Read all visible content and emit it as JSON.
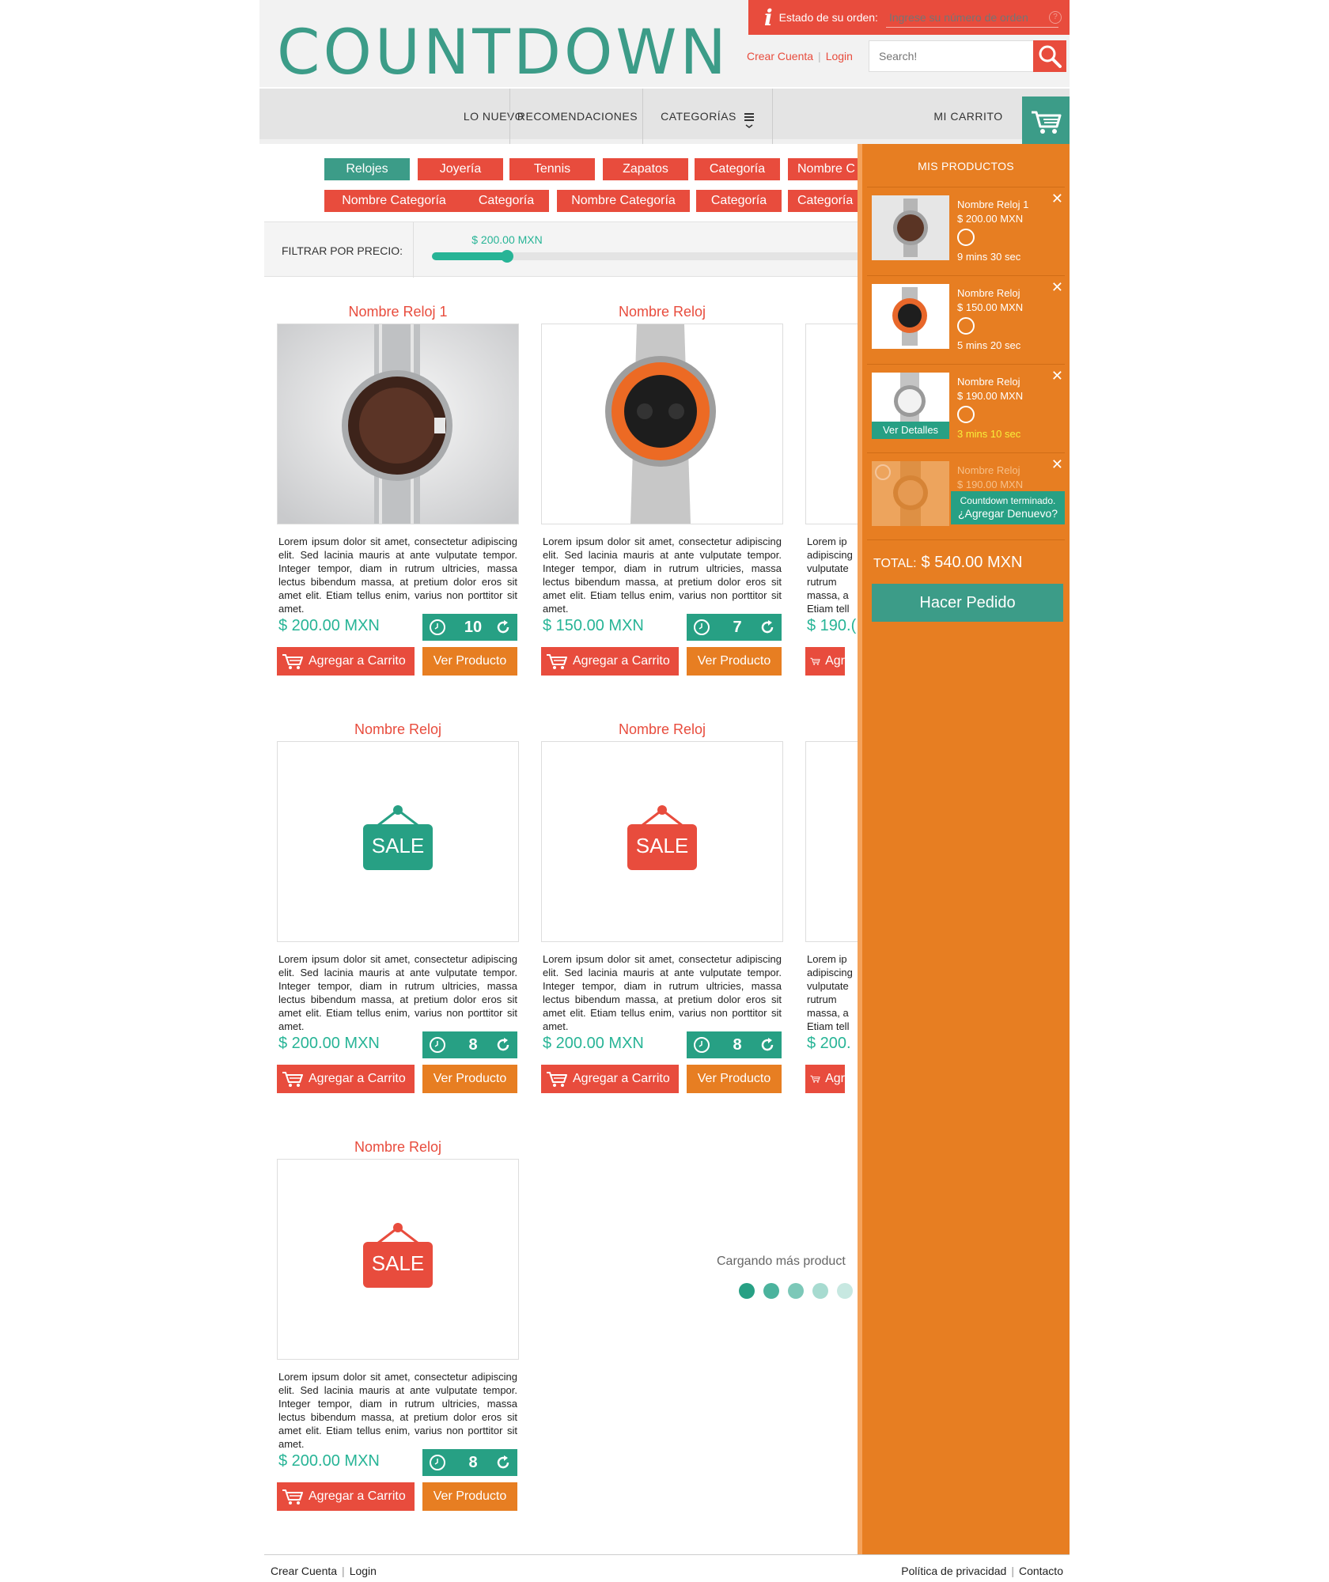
{
  "header": {
    "logo": "COUNTDOWN",
    "order_status_label": "Estado de su orden:",
    "order_input_placeholder": "Ingrese su número de orden",
    "create_account": "Crear Cuenta",
    "login": "Login",
    "search_placeholder": "Search!"
  },
  "nav": {
    "new": "LO NUEVO",
    "recommendations": "RECOMENDACIONES",
    "categories": "CATEGORÍAS",
    "cart": "MI CARRITO"
  },
  "categories": {
    "row1": [
      "Relojes",
      "Joyería",
      "Tennis",
      "Zapatos",
      "Categoría",
      "Nombre C"
    ],
    "row2": [
      "Nombre Categoría",
      "Categoría",
      "Nombre Categoría",
      "Categoría",
      "Categoría"
    ]
  },
  "filter": {
    "label": "FILTRAR POR PRECIO:",
    "value_label": "$ 200.00 MXN",
    "value_fraction": 0.17
  },
  "products": [
    {
      "title": "Nombre Reloj 1",
      "price": "$ 200.00 MXN",
      "timer": "10",
      "image": "watch-brown",
      "add": "Agregar a Carrito",
      "view": "Ver Producto"
    },
    {
      "title": "Nombre Reloj",
      "price": "$ 150.00 MXN",
      "timer": "7",
      "image": "watch-orange",
      "add": "Agregar a Carrito",
      "view": "Ver Producto"
    },
    {
      "title": "",
      "price": "$ 190.(",
      "timer": "",
      "image": "none",
      "add": "Agr",
      "view": ""
    },
    {
      "title": "Nombre Reloj",
      "price": "$ 200.00 MXN",
      "timer": "8",
      "image": "sale-green",
      "add": "Agregar a Carrito",
      "view": "Ver Producto"
    },
    {
      "title": "Nombre Reloj",
      "price": "$ 200.00 MXN",
      "timer": "8",
      "image": "sale-red",
      "add": "Agregar a Carrito",
      "view": "Ver Producto"
    },
    {
      "title": "",
      "price": "$ 200.",
      "timer": "",
      "image": "none",
      "add": "Agr",
      "view": ""
    },
    {
      "title": "Nombre Reloj",
      "price": "$ 200.00 MXN",
      "timer": "8",
      "image": "sale-red",
      "add": "Agregar a Carrito",
      "view": "Ver Producto"
    }
  ],
  "product_desc": "Lorem ipsum dolor sit amet, consectetur adipiscing elit. Sed lacinia mauris at ante vulputate tempor. Integer tempor, diam in rutrum ultricies, massa lectus bibendum massa, at pretium dolor eros sit amet elit. Etiam tellus enim, varius non porttitor sit amet.",
  "desc_cut": [
    "Lorem ip",
    "adipiscing",
    "vulputate",
    "rutrum",
    "massa, a",
    "Etiam tell"
  ],
  "sale_label": "SALE",
  "loading": {
    "text": "Cargando más product"
  },
  "cart": {
    "title": "MIS PRODUCTOS",
    "items": [
      {
        "name": "Nombre Reloj 1",
        "price": "$ 200.00 MXN",
        "time": "9 mins 30 sec",
        "image": "watch-brown"
      },
      {
        "name": "Nombre Reloj",
        "price": "$ 150.00 MXN",
        "time": "5 mins 20 sec",
        "image": "watch-orange"
      },
      {
        "name": "Nombre Reloj",
        "price": "$ 190.00 MXN",
        "time": "3 mins 10 sec",
        "image": "watch-white",
        "details": "Ver Detalles"
      },
      {
        "name": "Nombre Reloj",
        "price": "$ 190.00 MXN",
        "image": "watch-gold",
        "expired_l1": "Countdown terminado.",
        "expired_l2": "¿Agregar Denuevo?"
      }
    ],
    "total_label": "TOTAL:",
    "total_value": "$ 540.00 MXN",
    "order_button": "Hacer Pedido"
  },
  "footer": {
    "create_account": "Crear Cuenta",
    "login": "Login",
    "privacy": "Política de privacidad",
    "contact": "Contacto"
  },
  "colors": {
    "teal": "#3c9c88",
    "green_price": "#27b496",
    "red": "#e84c3d",
    "orange": "#e77e22"
  },
  "icons": [
    "info-icon",
    "search-icon",
    "cart-icon",
    "clock-icon",
    "refresh-icon",
    "close-icon",
    "menu-icon",
    "help-icon"
  ]
}
